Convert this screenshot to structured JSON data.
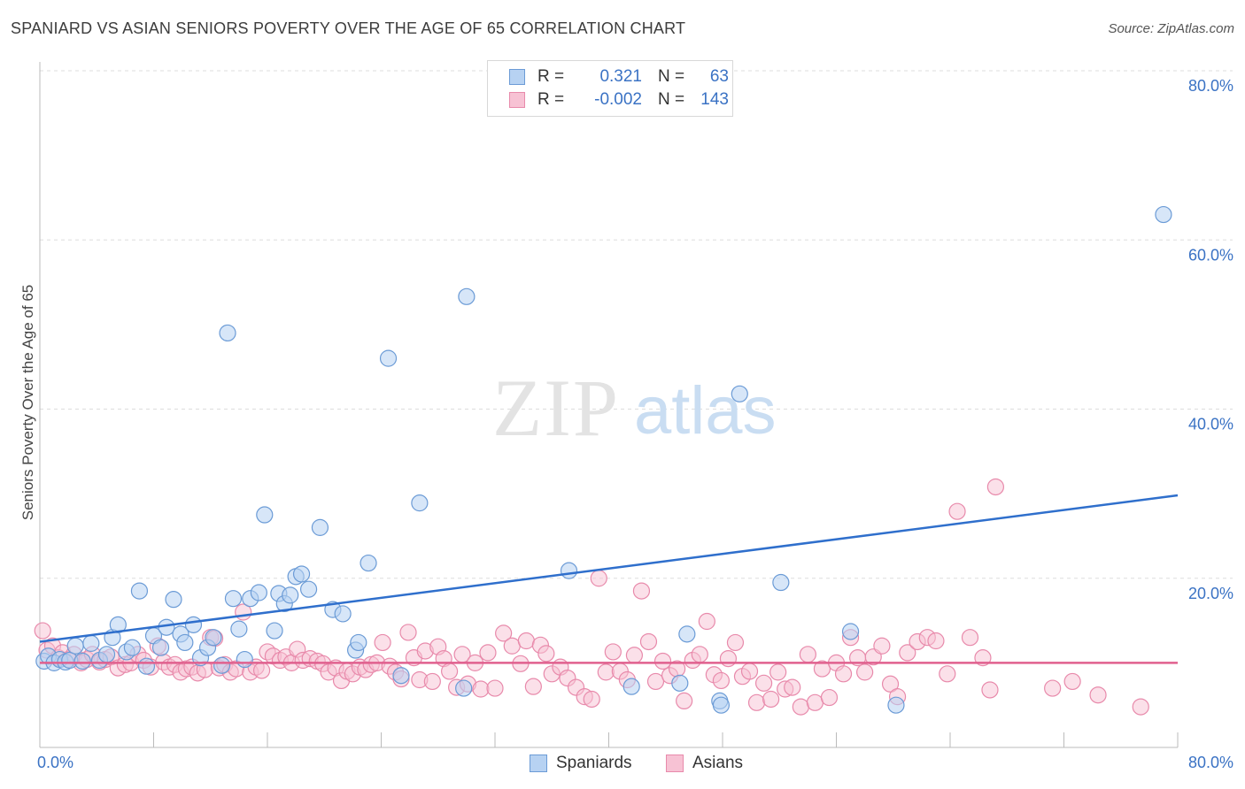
{
  "header": {
    "title": "SPANIARD VS ASIAN SENIORS POVERTY OVER THE AGE OF 65 CORRELATION CHART",
    "source": "Source: ZipAtlas.com"
  },
  "watermark": {
    "zip": "ZIP",
    "atlas": "atlas"
  },
  "legend": {
    "rows": [
      {
        "r_label": "R =",
        "r_value": "0.321",
        "n_label": "N =",
        "n_value": "63"
      },
      {
        "r_label": "R =",
        "r_value": "-0.002",
        "n_label": "N =",
        "n_value": "143"
      }
    ]
  },
  "colors": {
    "blue_fill": "#b7d2f2",
    "blue_stroke": "#6b9bd6",
    "blue_line": "#2f6fcc",
    "pink_fill": "#f7c2d4",
    "pink_stroke": "#e88aab",
    "pink_line": "#e0608e",
    "tick_label": "#3a72c4",
    "grid": "#dddddd"
  },
  "chart_data": {
    "type": "scatter",
    "title": "SPANIARD VS ASIAN SENIORS POVERTY OVER THE AGE OF 65 CORRELATION CHART",
    "xlabel": "",
    "ylabel": "Seniors Poverty Over the Age of 65",
    "xlim": [
      0,
      80
    ],
    "ylim": [
      0,
      80
    ],
    "x_tick_labels": [
      "0.0%",
      "80.0%"
    ],
    "y_tick_labels": [
      "20.0%",
      "40.0%",
      "60.0%",
      "80.0%"
    ],
    "y_ticks": [
      20,
      40,
      60,
      80
    ],
    "grid": true,
    "legend_position": "top-center",
    "series": [
      {
        "name": "Spaniards",
        "trend": {
          "x": [
            0,
            80
          ],
          "y": [
            12.5,
            29.8
          ]
        },
        "points": [
          [
            0.3,
            10.2
          ],
          [
            0.6,
            10.8
          ],
          [
            1.0,
            10.0
          ],
          [
            1.4,
            10.4
          ],
          [
            1.8,
            10.1
          ],
          [
            2.1,
            10.3
          ],
          [
            2.5,
            12.0
          ],
          [
            3.0,
            10.2
          ],
          [
            3.6,
            12.3
          ],
          [
            4.2,
            10.3
          ],
          [
            4.7,
            11.0
          ],
          [
            5.1,
            13.0
          ],
          [
            5.5,
            14.5
          ],
          [
            6.1,
            11.3
          ],
          [
            6.5,
            11.8
          ],
          [
            7.0,
            18.5
          ],
          [
            7.5,
            9.6
          ],
          [
            8.0,
            13.2
          ],
          [
            8.5,
            11.8
          ],
          [
            8.9,
            14.2
          ],
          [
            9.4,
            17.5
          ],
          [
            9.9,
            13.4
          ],
          [
            10.2,
            12.4
          ],
          [
            10.8,
            14.5
          ],
          [
            11.3,
            10.6
          ],
          [
            11.8,
            11.8
          ],
          [
            12.2,
            13.0
          ],
          [
            12.8,
            9.7
          ],
          [
            13.2,
            49.0
          ],
          [
            13.6,
            17.6
          ],
          [
            14.0,
            14.0
          ],
          [
            14.4,
            10.4
          ],
          [
            14.8,
            17.6
          ],
          [
            15.4,
            18.3
          ],
          [
            15.8,
            27.5
          ],
          [
            16.5,
            13.8
          ],
          [
            16.8,
            18.2
          ],
          [
            17.2,
            17.0
          ],
          [
            17.6,
            18.0
          ],
          [
            18.0,
            20.2
          ],
          [
            18.4,
            20.5
          ],
          [
            18.9,
            18.7
          ],
          [
            19.7,
            26.0
          ],
          [
            20.6,
            16.3
          ],
          [
            21.3,
            15.8
          ],
          [
            22.2,
            11.5
          ],
          [
            22.4,
            12.4
          ],
          [
            23.1,
            21.8
          ],
          [
            24.5,
            46.0
          ],
          [
            25.4,
            8.5
          ],
          [
            26.7,
            28.9
          ],
          [
            30.0,
            53.3
          ],
          [
            29.8,
            7.0
          ],
          [
            37.2,
            20.9
          ],
          [
            41.6,
            7.2
          ],
          [
            45.0,
            7.6
          ],
          [
            45.5,
            13.4
          ],
          [
            47.8,
            5.5
          ],
          [
            47.9,
            5.0
          ],
          [
            49.2,
            41.8
          ],
          [
            52.1,
            19.5
          ],
          [
            57.0,
            13.7
          ],
          [
            60.2,
            5.0
          ],
          [
            79.0,
            63.0
          ]
        ]
      },
      {
        "name": "Asians",
        "trend": {
          "x": [
            0,
            80
          ],
          "y": [
            10.0,
            10.0
          ]
        },
        "points": [
          [
            0.2,
            13.8
          ],
          [
            0.5,
            11.5
          ],
          [
            0.9,
            12.0
          ],
          [
            1.3,
            10.6
          ],
          [
            1.6,
            11.2
          ],
          [
            2.0,
            10.4
          ],
          [
            2.4,
            11.0
          ],
          [
            2.9,
            10.0
          ],
          [
            3.3,
            10.4
          ],
          [
            3.7,
            11.0
          ],
          [
            4.2,
            10.1
          ],
          [
            4.6,
            10.4
          ],
          [
            5.0,
            10.7
          ],
          [
            5.5,
            9.4
          ],
          [
            6.0,
            9.8
          ],
          [
            6.4,
            10.0
          ],
          [
            6.9,
            11.0
          ],
          [
            7.3,
            10.3
          ],
          [
            7.8,
            9.5
          ],
          [
            8.3,
            12.0
          ],
          [
            8.7,
            10.1
          ],
          [
            9.1,
            9.5
          ],
          [
            9.5,
            9.8
          ],
          [
            9.9,
            8.9
          ],
          [
            10.3,
            9.3
          ],
          [
            10.7,
            9.5
          ],
          [
            11.1,
            8.8
          ],
          [
            11.6,
            9.2
          ],
          [
            12.0,
            13.0
          ],
          [
            12.3,
            12.9
          ],
          [
            12.6,
            9.4
          ],
          [
            13.0,
            9.8
          ],
          [
            13.4,
            8.9
          ],
          [
            13.8,
            9.3
          ],
          [
            14.3,
            16.0
          ],
          [
            14.8,
            8.9
          ],
          [
            15.2,
            9.5
          ],
          [
            15.6,
            9.1
          ],
          [
            16.0,
            11.3
          ],
          [
            16.4,
            10.8
          ],
          [
            16.9,
            10.3
          ],
          [
            17.3,
            10.7
          ],
          [
            17.7,
            10.0
          ],
          [
            18.1,
            11.6
          ],
          [
            18.5,
            10.3
          ],
          [
            19.0,
            10.5
          ],
          [
            19.5,
            10.2
          ],
          [
            19.9,
            9.9
          ],
          [
            20.3,
            8.9
          ],
          [
            20.8,
            9.4
          ],
          [
            21.2,
            7.9
          ],
          [
            21.6,
            9.0
          ],
          [
            22.0,
            8.7
          ],
          [
            22.5,
            9.5
          ],
          [
            22.9,
            9.2
          ],
          [
            23.3,
            9.8
          ],
          [
            23.7,
            10.0
          ],
          [
            24.1,
            12.4
          ],
          [
            24.6,
            9.6
          ],
          [
            25.0,
            8.9
          ],
          [
            25.4,
            8.1
          ],
          [
            25.9,
            13.6
          ],
          [
            26.3,
            10.6
          ],
          [
            26.7,
            8.0
          ],
          [
            27.1,
            11.4
          ],
          [
            27.6,
            7.8
          ],
          [
            28.0,
            11.9
          ],
          [
            28.4,
            10.5
          ],
          [
            28.8,
            9.0
          ],
          [
            29.3,
            7.1
          ],
          [
            29.7,
            11.0
          ],
          [
            30.1,
            7.5
          ],
          [
            30.6,
            10.0
          ],
          [
            31.0,
            6.9
          ],
          [
            31.5,
            11.2
          ],
          [
            32.0,
            7.0
          ],
          [
            32.6,
            13.5
          ],
          [
            33.2,
            12.0
          ],
          [
            33.8,
            9.9
          ],
          [
            34.2,
            12.6
          ],
          [
            34.7,
            7.2
          ],
          [
            35.2,
            12.1
          ],
          [
            35.6,
            11.1
          ],
          [
            36.0,
            8.7
          ],
          [
            36.6,
            9.5
          ],
          [
            37.1,
            8.2
          ],
          [
            37.7,
            7.1
          ],
          [
            38.3,
            6.0
          ],
          [
            38.8,
            5.7
          ],
          [
            39.3,
            20.0
          ],
          [
            39.8,
            8.9
          ],
          [
            40.3,
            11.3
          ],
          [
            40.8,
            9.0
          ],
          [
            41.3,
            8.0
          ],
          [
            41.8,
            10.9
          ],
          [
            42.3,
            18.5
          ],
          [
            42.8,
            12.5
          ],
          [
            43.3,
            7.8
          ],
          [
            43.8,
            10.2
          ],
          [
            44.3,
            8.5
          ],
          [
            44.8,
            9.3
          ],
          [
            45.3,
            5.5
          ],
          [
            45.9,
            10.3
          ],
          [
            46.4,
            11.0
          ],
          [
            46.9,
            14.9
          ],
          [
            47.4,
            8.6
          ],
          [
            47.9,
            7.9
          ],
          [
            48.4,
            10.5
          ],
          [
            48.9,
            12.4
          ],
          [
            49.4,
            8.4
          ],
          [
            49.9,
            9.0
          ],
          [
            50.4,
            5.3
          ],
          [
            50.9,
            7.6
          ],
          [
            51.4,
            5.7
          ],
          [
            51.9,
            8.9
          ],
          [
            52.4,
            6.9
          ],
          [
            52.9,
            7.1
          ],
          [
            53.5,
            4.8
          ],
          [
            54.0,
            11.0
          ],
          [
            54.5,
            5.3
          ],
          [
            55.0,
            9.3
          ],
          [
            55.5,
            5.9
          ],
          [
            56.0,
            10.0
          ],
          [
            56.5,
            8.7
          ],
          [
            57.0,
            13.0
          ],
          [
            57.5,
            10.6
          ],
          [
            58.0,
            8.9
          ],
          [
            58.6,
            10.7
          ],
          [
            59.2,
            12.0
          ],
          [
            59.8,
            7.5
          ],
          [
            60.3,
            6.0
          ],
          [
            61.0,
            11.2
          ],
          [
            61.7,
            12.5
          ],
          [
            62.4,
            13.0
          ],
          [
            63.0,
            12.6
          ],
          [
            63.8,
            8.7
          ],
          [
            64.5,
            27.9
          ],
          [
            65.4,
            13.0
          ],
          [
            66.3,
            10.6
          ],
          [
            66.8,
            6.8
          ],
          [
            67.2,
            30.8
          ],
          [
            71.2,
            7.0
          ],
          [
            72.6,
            7.8
          ],
          [
            74.4,
            6.2
          ],
          [
            77.4,
            4.8
          ]
        ]
      }
    ]
  }
}
